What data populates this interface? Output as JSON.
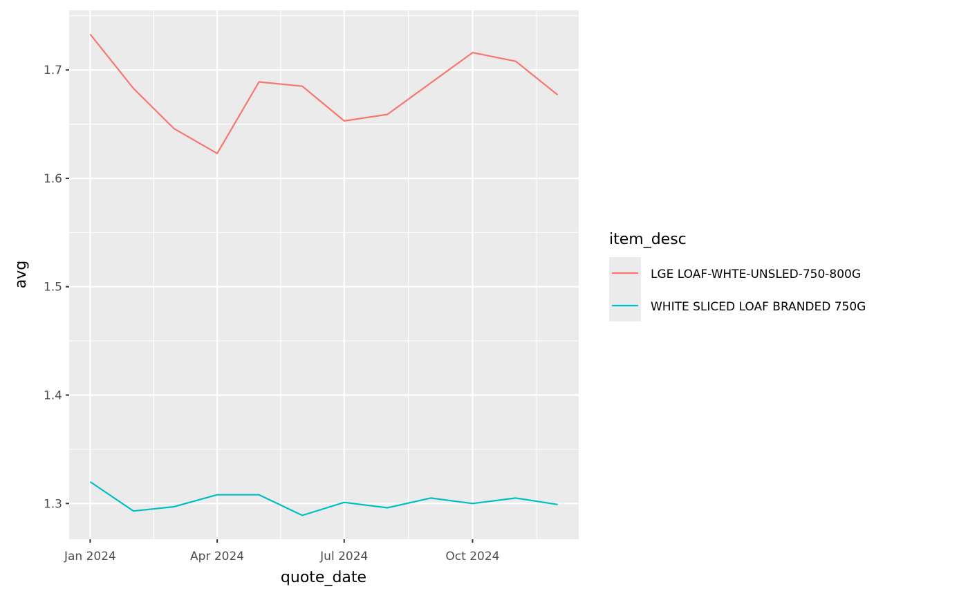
{
  "chart_data": {
    "type": "line",
    "xlabel": "quote_date",
    "ylabel": "avg",
    "x": [
      "2024-01",
      "2024-02",
      "2024-03",
      "2024-04",
      "2024-05",
      "2024-06",
      "2024-07",
      "2024-08",
      "2024-09",
      "2024-10",
      "2024-11",
      "2024-12"
    ],
    "x_ticks": [
      "Jan 2024",
      "Apr 2024",
      "Jul 2024",
      "Oct 2024"
    ],
    "y_ticks": [
      "1.3",
      "1.4",
      "1.5",
      "1.6",
      "1.7"
    ],
    "ylim": [
      1.267,
      1.755
    ],
    "grid": true,
    "background": "#ebebeb",
    "legend": {
      "title": "item_desc",
      "position": "right"
    },
    "series": [
      {
        "name": "LGE LOAF-WHTE-UNSLED-750-800G",
        "color": "#f8766d",
        "values": [
          1.733,
          1.683,
          1.646,
          1.623,
          1.689,
          1.685,
          1.653,
          1.659,
          1.688,
          1.716,
          1.708,
          1.677
        ]
      },
      {
        "name": "WHITE SLICED LOAF BRANDED 750G",
        "color": "#00bfc4",
        "values": [
          1.32,
          1.293,
          1.297,
          1.308,
          1.308,
          1.289,
          1.301,
          1.296,
          1.305,
          1.3,
          1.305,
          1.299
        ]
      }
    ]
  }
}
